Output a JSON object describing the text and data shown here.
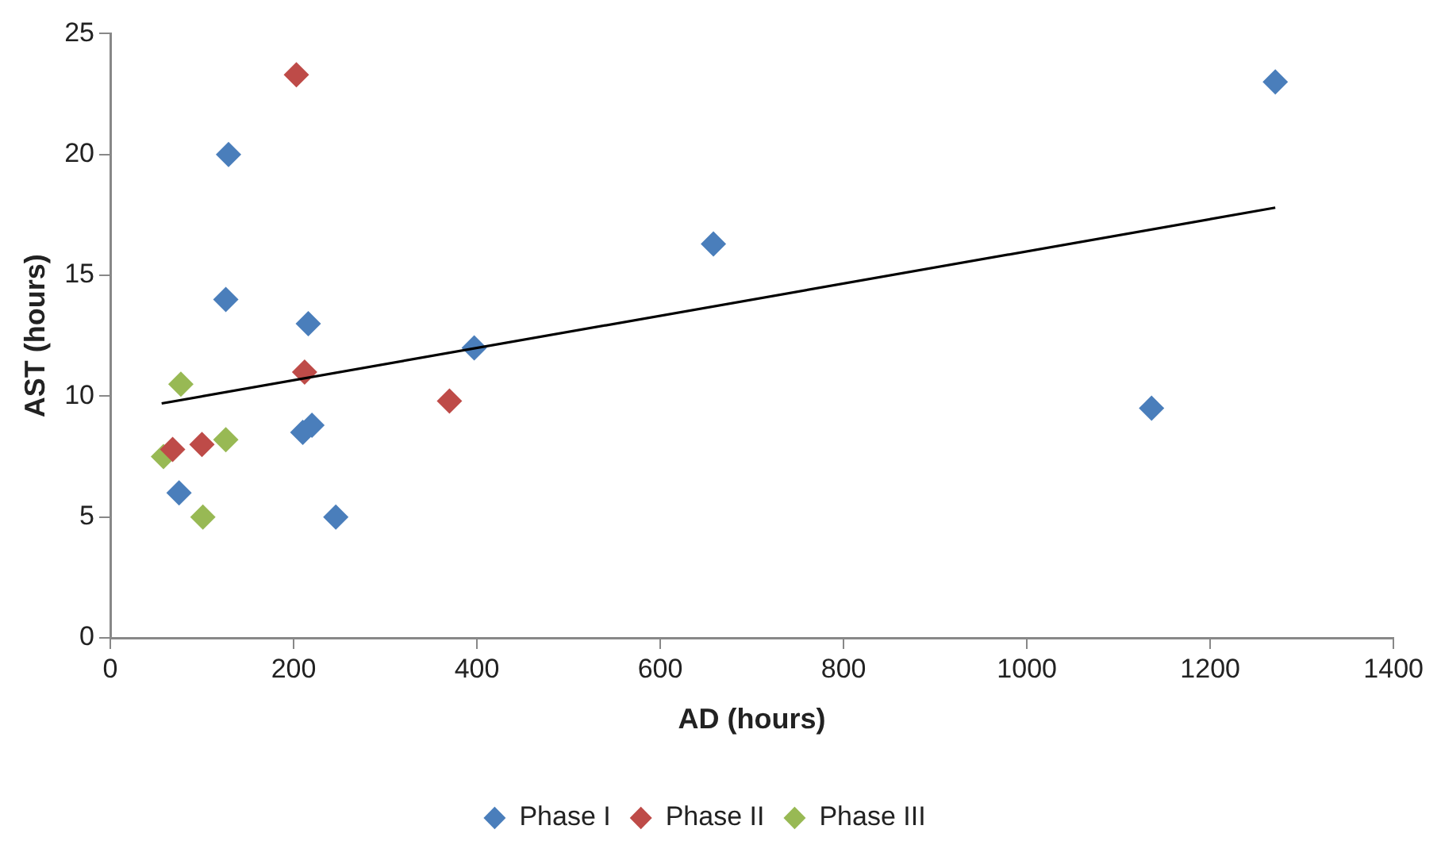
{
  "chart_data": {
    "type": "scatter",
    "xlabel": "AD (hours)",
    "ylabel": "AST (hours)",
    "xlim": [
      0,
      1400
    ],
    "xticks": [
      0,
      200,
      400,
      600,
      800,
      1000,
      1200,
      1400
    ],
    "ylim": [
      0,
      25
    ],
    "yticks": [
      0,
      5,
      10,
      15,
      20,
      25
    ],
    "grid": false,
    "legend": "bottom",
    "marker": "diamond",
    "series": [
      {
        "name": "Phase I",
        "color": "#4a7ebb",
        "x": [
          75,
          126,
          129,
          216,
          210,
          220,
          246,
          397,
          658,
          1136,
          1271
        ],
        "values": [
          6.0,
          14.0,
          20.0,
          13.0,
          8.5,
          8.8,
          5.0,
          12.0,
          16.3,
          9.5,
          23.0
        ]
      },
      {
        "name": "Phase II",
        "color": "#be4b48",
        "x": [
          203,
          212,
          370,
          100,
          68
        ],
        "values": [
          23.3,
          11.0,
          9.8,
          8.0,
          7.8
        ]
      },
      {
        "name": "Phase III",
        "color": "#98b954",
        "x": [
          77,
          126,
          58,
          101
        ],
        "values": [
          10.5,
          8.2,
          7.5,
          5.0
        ]
      },
      {
        "type": "line",
        "color": "#000000",
        "marker": "none",
        "x": [
          56,
          1271
        ],
        "values": [
          9.7,
          17.8
        ]
      }
    ]
  }
}
